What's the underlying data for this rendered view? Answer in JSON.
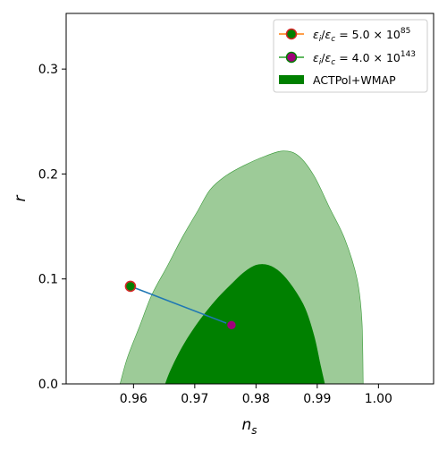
{
  "chart_data": {
    "type": "scatter",
    "xlabel_base": "n",
    "xlabel_sub": "s",
    "ylabel": "r",
    "xlim": [
      0.949,
      1.009
    ],
    "ylim": [
      0.0,
      0.353
    ],
    "x_ticks": [
      0.96,
      0.97,
      0.98,
      0.99,
      1.0
    ],
    "x_tick_labels": [
      "0.96",
      "0.97",
      "0.98",
      "0.99",
      "1.00"
    ],
    "y_ticks": [
      0.0,
      0.1,
      0.2,
      0.3
    ],
    "y_tick_labels": [
      "0.0",
      "0.1",
      "0.2",
      "0.3"
    ],
    "grid": false,
    "legend_position": "top-right",
    "colors": {
      "contour_outer": "#9dcb98",
      "contour_inner": "#008000",
      "contour_edge": "#3a9a3a",
      "line": "#1f77b4",
      "marker_edge_1": "#d62728",
      "marker_face_1": "#008000",
      "marker_face_2": "#a0007a",
      "marker_edge_2": "#008000",
      "legend_line_1": "#ff7f0e",
      "legend_line_2": "#2ca02c"
    },
    "line_points": [
      {
        "x": 0.9595,
        "y": 0.093
      },
      {
        "x": 0.976,
        "y": 0.056
      }
    ],
    "series": [
      {
        "name_parts": [
          "ε",
          "i",
          "/",
          "ε",
          "c",
          " = 5.0 × 10",
          "85"
        ],
        "x": 0.9595,
        "y": 0.093
      },
      {
        "name_parts": [
          "ε",
          "i",
          "/",
          "ε",
          "c",
          " = 4.0 × 10",
          "143"
        ],
        "x": 0.976,
        "y": 0.056
      }
    ],
    "region_label": "ACTPol+WMAP",
    "contours": {
      "outer_95": [
        [
          0.9578,
          0.0
        ],
        [
          0.959,
          0.025
        ],
        [
          0.961,
          0.055
        ],
        [
          0.963,
          0.085
        ],
        [
          0.9655,
          0.112
        ],
        [
          0.968,
          0.14
        ],
        [
          0.9705,
          0.165
        ],
        [
          0.9725,
          0.185
        ],
        [
          0.975,
          0.198
        ],
        [
          0.978,
          0.208
        ],
        [
          0.9815,
          0.217
        ],
        [
          0.9845,
          0.222
        ],
        [
          0.987,
          0.217
        ],
        [
          0.9895,
          0.198
        ],
        [
          0.992,
          0.168
        ],
        [
          0.9945,
          0.138
        ],
        [
          0.9965,
          0.1
        ],
        [
          0.9973,
          0.06
        ],
        [
          0.9975,
          0.0
        ]
      ],
      "inner_68": [
        [
          0.9652,
          0.0
        ],
        [
          0.966,
          0.012
        ],
        [
          0.9675,
          0.03
        ],
        [
          0.969,
          0.045
        ],
        [
          0.971,
          0.062
        ],
        [
          0.9735,
          0.08
        ],
        [
          0.976,
          0.095
        ],
        [
          0.978,
          0.106
        ],
        [
          0.98,
          0.113
        ],
        [
          0.982,
          0.113
        ],
        [
          0.984,
          0.106
        ],
        [
          0.986,
          0.092
        ],
        [
          0.988,
          0.072
        ],
        [
          0.9895,
          0.045
        ],
        [
          0.9905,
          0.018
        ],
        [
          0.9912,
          0.0
        ]
      ]
    }
  }
}
